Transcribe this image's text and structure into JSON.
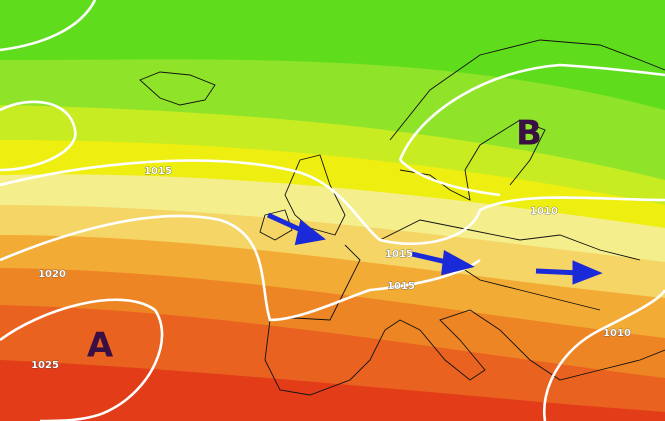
{
  "map": {
    "pressure_centers": [
      {
        "label": "A"
      },
      {
        "label": "B"
      }
    ],
    "isobar_labels": [
      "1015",
      "1020",
      "1025",
      "1010",
      "1015",
      "1015",
      "1010"
    ]
  }
}
